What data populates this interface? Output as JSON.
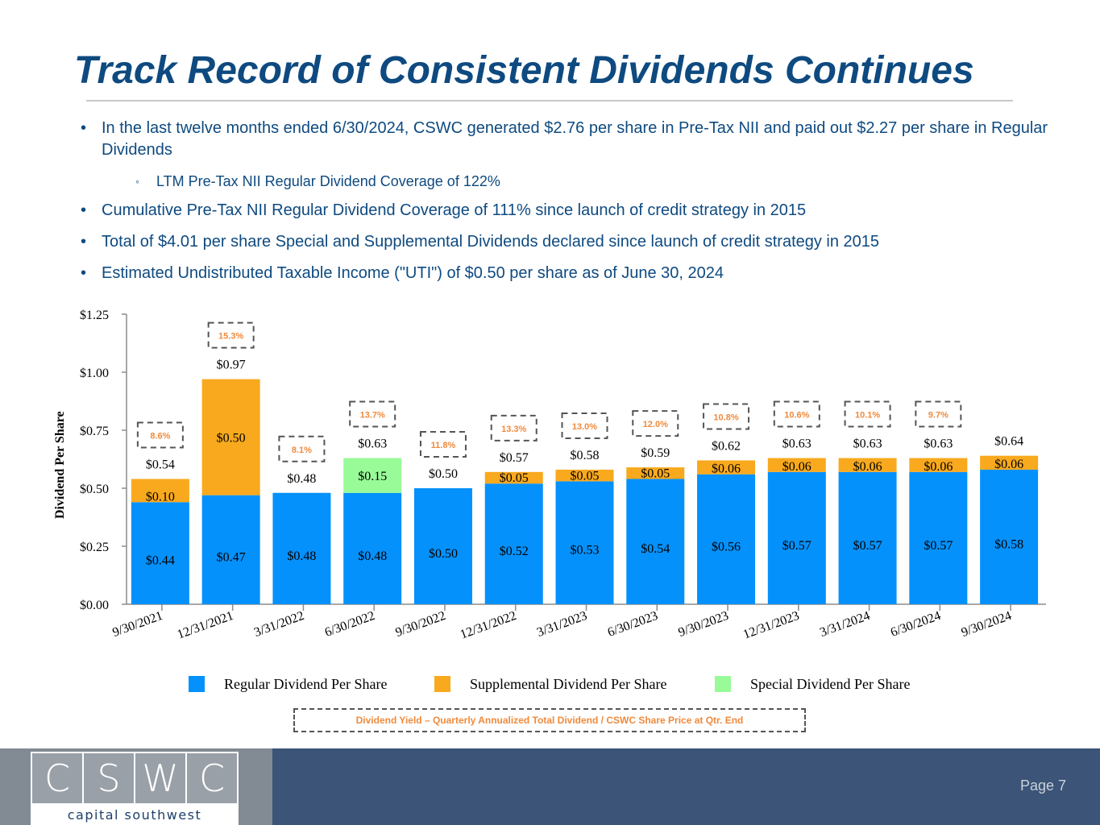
{
  "title": "Track Record of Consistent Dividends Continues",
  "bullets": [
    {
      "level": 1,
      "marker": "•",
      "text": "In the last twelve months ended 6/30/2024, CSWC generated $2.76 per share in Pre-Tax NII and paid out $2.27 per share in Regular Dividends"
    },
    {
      "level": 2,
      "marker": "◦",
      "text": "LTM Pre-Tax NII Regular Dividend Coverage of 122%"
    },
    {
      "level": 1,
      "marker": "•",
      "text": "Cumulative Pre-Tax NII Regular Dividend Coverage of 111% since launch of credit strategy in 2015"
    },
    {
      "level": 1,
      "marker": "•",
      "text": "Total of $4.01 per share Special and Supplemental Dividends declared since launch of credit strategy in 2015"
    },
    {
      "level": 1,
      "marker": "•",
      "text": "Estimated Undistributed Taxable Income (\"UTI\") of $0.50 per share as of June 30, 2024"
    }
  ],
  "chart_data": {
    "type": "bar",
    "stacked": true,
    "title": "",
    "xlabel": "",
    "ylabel": "Dividend Per Share",
    "ylim": [
      0,
      1.25
    ],
    "yticks": [
      "$0.00",
      "$0.25",
      "$0.50",
      "$0.75",
      "$1.00",
      "$1.25"
    ],
    "ytick_values": [
      0,
      0.25,
      0.5,
      0.75,
      1.0,
      1.25
    ],
    "grid": false,
    "legend_position": "bottom",
    "categories": [
      "9/30/2021",
      "12/31/2021",
      "3/31/2022",
      "6/30/2022",
      "9/30/2022",
      "12/31/2022",
      "3/31/2023",
      "6/30/2023",
      "9/30/2023",
      "12/31/2023",
      "3/31/2024",
      "6/30/2024",
      "9/30/2024"
    ],
    "series": [
      {
        "name": "Regular Dividend Per Share",
        "color": "#0591fb",
        "values": [
          0.44,
          0.47,
          0.48,
          0.48,
          0.5,
          0.52,
          0.53,
          0.54,
          0.56,
          0.57,
          0.57,
          0.57,
          0.58
        ],
        "labels": [
          "$0.44",
          "$0.47",
          "$0.48",
          "$0.48",
          "$0.50",
          "$0.52",
          "$0.53",
          "$0.54",
          "$0.56",
          "$0.57",
          "$0.57",
          "$0.57",
          "$0.58"
        ]
      },
      {
        "name": "Supplemental Dividend Per Share",
        "color": "#f8a91d",
        "values": [
          0.1,
          0.5,
          0,
          0,
          0,
          0.05,
          0.05,
          0.05,
          0.06,
          0.06,
          0.06,
          0.06,
          0.06
        ],
        "labels": [
          "$0.10",
          "$0.50",
          "",
          "",
          "",
          "$0.05",
          "$0.05",
          "$0.05",
          "$0.06",
          "$0.06",
          "$0.06",
          "$0.06",
          "$0.06"
        ]
      },
      {
        "name": "Special Dividend Per Share",
        "color": "#98fb98",
        "values": [
          0,
          0,
          0,
          0.15,
          0,
          0,
          0,
          0,
          0,
          0,
          0,
          0,
          0
        ],
        "labels": [
          "",
          "",
          "",
          "$0.15",
          "",
          "",
          "",
          "",
          "",
          "",
          "",
          "",
          ""
        ]
      }
    ],
    "totals": [
      "$0.54",
      "$0.97",
      "$0.48",
      "$0.63",
      "$0.50",
      "$0.57",
      "$0.58",
      "$0.59",
      "$0.62",
      "$0.63",
      "$0.63",
      "$0.63",
      "$0.64"
    ],
    "dividend_yield": [
      "8.6%",
      "15.3%",
      "8.1%",
      "13.7%",
      "11.8%",
      "13.3%",
      "13.0%",
      "12.0%",
      "10.8%",
      "10.6%",
      "10.1%",
      "9.7%",
      ""
    ],
    "annotation": "Dividend Yield – Quarterly Annualized Total Dividend / CSWC Share Price at Qtr. End"
  },
  "legend": [
    {
      "label": "Regular Dividend Per Share",
      "color": "#0591fb"
    },
    {
      "label": "Supplemental Dividend Per Share",
      "color": "#f8a91d"
    },
    {
      "label": "Special Dividend Per Share",
      "color": "#98fb98"
    }
  ],
  "footer": {
    "logo_letters": [
      "C",
      "S",
      "W",
      "C"
    ],
    "logo_subtitle": "capital southwest",
    "page_label": "Page 7"
  }
}
